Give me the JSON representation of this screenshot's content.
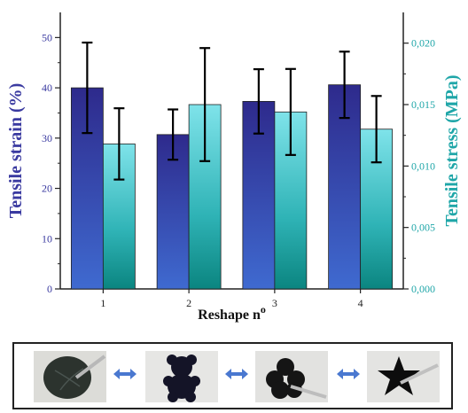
{
  "chart_data": {
    "type": "bar",
    "xlabel": "Reshape n",
    "xlabel_sup": "o",
    "categories": [
      "1",
      "2",
      "3",
      "4"
    ],
    "y_left": {
      "label": "Tensile strain (%)",
      "ylim": [
        0,
        55
      ],
      "ticks": [
        "0",
        "10",
        "20",
        "30",
        "40",
        "50"
      ],
      "color": "#3a3aa0"
    },
    "y_right": {
      "label": "Tensile stress (MPa)",
      "ylim": [
        0,
        0.0225
      ],
      "ticks": [
        "0,000",
        "0,005",
        "0,010",
        "0,015",
        "0,020"
      ],
      "color": "#1fa6a8"
    },
    "series": [
      {
        "axis": "left",
        "values": [
          40.0,
          30.7,
          37.3,
          40.6
        ],
        "error": [
          9.0,
          5.0,
          6.4,
          6.6
        ],
        "color_top": "#2e2a8c",
        "color_bottom": "#3a5fc4"
      },
      {
        "axis": "right",
        "values": [
          0.0118,
          0.015,
          0.0144,
          0.013
        ],
        "error": [
          0.0029,
          0.0046,
          0.0035,
          0.0027
        ],
        "color_top": "#6fdbe2",
        "color_bottom": "#0f8a86"
      }
    ],
    "grid": false,
    "legend": "none"
  },
  "photos": [
    {
      "shape": "disc",
      "desc": "disc"
    },
    {
      "shape": "bear",
      "desc": "bear"
    },
    {
      "shape": "flower",
      "desc": "flower"
    },
    {
      "shape": "star",
      "desc": "star"
    }
  ],
  "colors": {
    "arrow": "#4a78d0",
    "axis": "#222222"
  }
}
